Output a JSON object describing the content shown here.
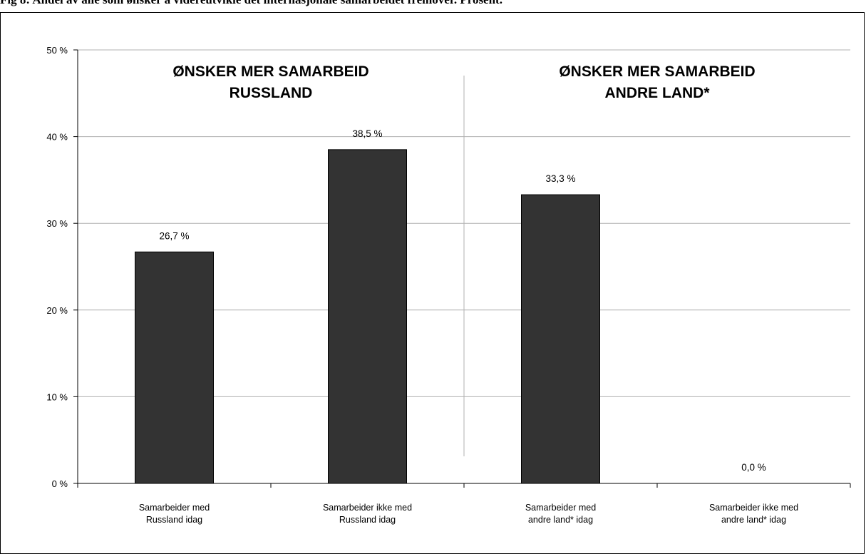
{
  "caption": "Fig 8: Andel av alle som ønsker å videreutvikle det internasjonale samarbeidet fremover. Prosent.",
  "chart_data": {
    "type": "bar",
    "title": "",
    "xlabel": "",
    "ylabel": "",
    "ylim": [
      0,
      50
    ],
    "yticks": [
      "0 %",
      "10 %",
      "20 %",
      "30 %",
      "40 %",
      "50 %"
    ],
    "ytick_values": [
      0,
      10,
      20,
      30,
      40,
      50
    ],
    "grid": true,
    "categories": [
      [
        "Samarbeider med",
        "Russland idag"
      ],
      [
        "Samarbeider ikke med",
        "Russland idag"
      ],
      [
        "Samarbeider med",
        "andre land* idag"
      ],
      [
        "Samarbeider ikke med",
        "andre land* idag"
      ]
    ],
    "values": [
      26.7,
      38.5,
      33.3,
      0.0
    ],
    "data_labels": [
      "26,7 %",
      "38,5 %",
      "33,3 %",
      "0,0 %"
    ],
    "bar_color": "#333333",
    "annotations": [
      {
        "lines": [
          "ØNSKER MER SAMARBEID",
          "RUSSLAND"
        ]
      },
      {
        "lines": [
          "ØNSKER MER SAMARBEID",
          "ANDRE LAND*"
        ]
      }
    ]
  }
}
